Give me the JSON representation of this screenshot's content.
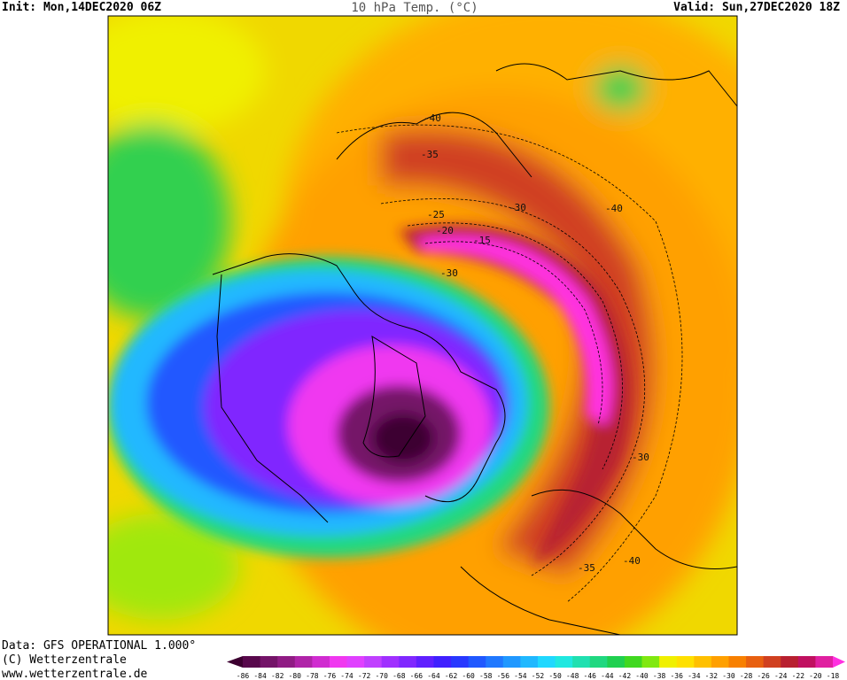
{
  "header": {
    "init": "Init: Mon,14DEC2020 06Z",
    "title": "10 hPa Temp. (°C)",
    "valid": "Valid: Sun,27DEC2020 18Z"
  },
  "footer": {
    "data_source": "Data: GFS OPERATIONAL 1.000°",
    "copyright": "(C) Wetterzentrale",
    "url": "www.wetterzentrale.de"
  },
  "colorbar": {
    "labels": [
      -86,
      -84,
      -82,
      -80,
      -78,
      -76,
      -74,
      -72,
      -70,
      -68,
      -66,
      -64,
      -62,
      -60,
      -58,
      -56,
      -54,
      -52,
      -50,
      -48,
      -46,
      -44,
      -42,
      -40,
      -38,
      -36,
      -34,
      -32,
      -30,
      -28,
      -26,
      -24,
      -22,
      -20,
      -18
    ],
    "colors": [
      "#3c0030",
      "#58084c",
      "#741468",
      "#901c84",
      "#b024a8",
      "#d02cd0",
      "#f038f0",
      "#e040ff",
      "#c040ff",
      "#a030ff",
      "#8028ff",
      "#6020ff",
      "#4020ff",
      "#2838ff",
      "#2058ff",
      "#2078ff",
      "#2098ff",
      "#20b8ff",
      "#20d8ff",
      "#20e8e0",
      "#20e0b0",
      "#20d880",
      "#20d050",
      "#40d820",
      "#80e810",
      "#f0f000",
      "#ffe000",
      "#ffc000",
      "#ffa000",
      "#f88000",
      "#e86010",
      "#d04020",
      "#b82030",
      "#c01060",
      "#e020a0",
      "#ff30e0"
    ]
  },
  "map": {
    "contour_labels": [
      -40,
      -35,
      -30,
      -25,
      -20,
      -15,
      -30,
      -40,
      -30,
      -35,
      -40
    ]
  }
}
